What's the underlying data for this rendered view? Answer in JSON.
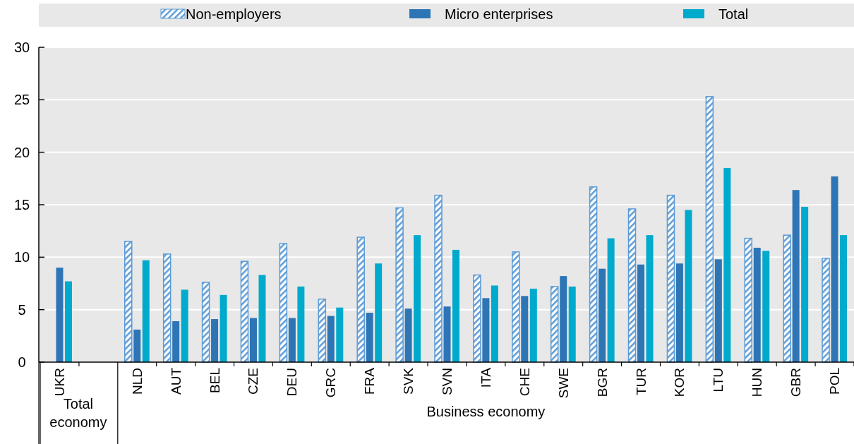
{
  "chart_data": {
    "type": "bar",
    "categories": [
      "UKR",
      null,
      "NLD",
      "AUT",
      "BEL",
      "CZE",
      "DEU",
      "GRC",
      "FRA",
      "SVK",
      "SVN",
      "ITA",
      "CHE",
      "SWE",
      "BGR",
      "TUR",
      "KOR",
      "LTU",
      "HUN",
      "GBR",
      "POL"
    ],
    "series": [
      {
        "name": "Non-employers",
        "color": "#5b9bd5",
        "values": [
          null,
          null,
          11.5,
          10.3,
          7.6,
          9.6,
          11.3,
          6.0,
          11.9,
          14.7,
          15.9,
          8.3,
          10.5,
          7.2,
          16.7,
          14.6,
          15.9,
          25.3,
          11.8,
          12.1,
          9.9
        ]
      },
      {
        "name": "Micro enterprises",
        "color": "#2e75b6",
        "values": [
          9.0,
          null,
          3.1,
          3.9,
          4.1,
          4.2,
          4.2,
          4.4,
          4.7,
          5.1,
          5.3,
          6.1,
          6.3,
          8.2,
          8.9,
          9.3,
          9.4,
          9.8,
          10.9,
          16.4,
          17.7
        ]
      },
      {
        "name": "Total",
        "color": "#00aacc",
        "values": [
          7.7,
          null,
          9.7,
          6.9,
          6.4,
          8.3,
          7.2,
          5.2,
          9.4,
          12.1,
          10.7,
          7.3,
          7.0,
          7.2,
          11.8,
          12.1,
          14.5,
          18.5,
          10.6,
          14.8,
          12.1
        ]
      }
    ],
    "ylim": [
      0,
      30
    ],
    "yticks": [
      0,
      5,
      10,
      15,
      20,
      25,
      30
    ],
    "grid": "y",
    "legend": "top",
    "annotations": [
      "Total economy",
      "Business economy"
    ]
  }
}
